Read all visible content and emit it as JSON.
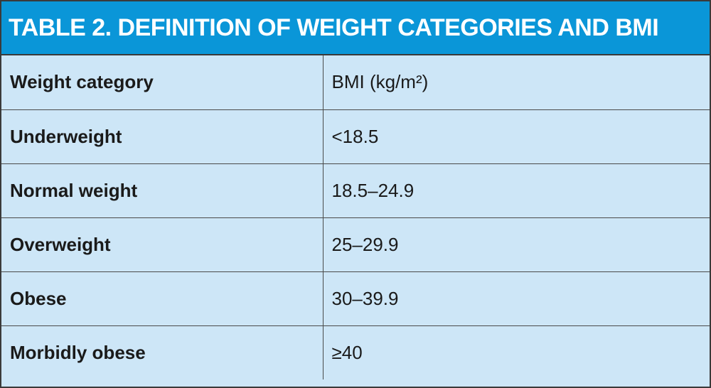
{
  "title": "TABLE 2. DEFINITION OF WEIGHT CATEGORIES AND BMI",
  "table": {
    "header": [
      "Weight category",
      "BMI (kg/m²)"
    ],
    "rows": [
      [
        "Underweight",
        "<18.5"
      ],
      [
        "Normal weight",
        "18.5–24.9"
      ],
      [
        "Overweight",
        "25–29.9"
      ],
      [
        "Obese",
        "30–39.9"
      ],
      [
        "Morbidly obese",
        "≥40"
      ]
    ]
  }
}
